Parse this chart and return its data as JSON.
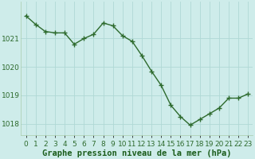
{
  "x": [
    0,
    1,
    2,
    3,
    4,
    5,
    6,
    7,
    8,
    9,
    10,
    11,
    12,
    13,
    14,
    15,
    16,
    17,
    18,
    19,
    20,
    21,
    22,
    23
  ],
  "y": [
    1021.8,
    1021.5,
    1021.25,
    1021.2,
    1021.2,
    1020.8,
    1021.0,
    1021.15,
    1021.55,
    1021.45,
    1021.1,
    1020.9,
    1020.4,
    1019.85,
    1019.35,
    1018.65,
    1018.25,
    1017.95,
    1018.15,
    1018.35,
    1018.55,
    1018.9,
    1018.9,
    1019.05
  ],
  "line_color": "#2d6a2d",
  "marker_color": "#2d6a2d",
  "bg_color": "#ceecea",
  "grid_color": "#b0d8d5",
  "xlabel": "Graphe pression niveau de la mer (hPa)",
  "xlabel_color": "#1a5c1a",
  "tick_color": "#2d6a2d",
  "ylim": [
    1017.6,
    1022.3
  ],
  "yticks": [
    1018,
    1019,
    1020,
    1021
  ],
  "xticks": [
    0,
    1,
    2,
    3,
    4,
    5,
    6,
    7,
    8,
    9,
    10,
    11,
    12,
    13,
    14,
    15,
    16,
    17,
    18,
    19,
    20,
    21,
    22,
    23
  ],
  "xtick_labels": [
    "0",
    "1",
    "2",
    "3",
    "4",
    "5",
    "6",
    "7",
    "8",
    "9",
    "10",
    "11",
    "12",
    "13",
    "14",
    "15",
    "16",
    "17",
    "18",
    "19",
    "20",
    "21",
    "22",
    "23"
  ],
  "font_size_xlabel": 7.5,
  "font_size_ticks": 6.5,
  "marker_size": 2.5,
  "line_width": 1.0
}
